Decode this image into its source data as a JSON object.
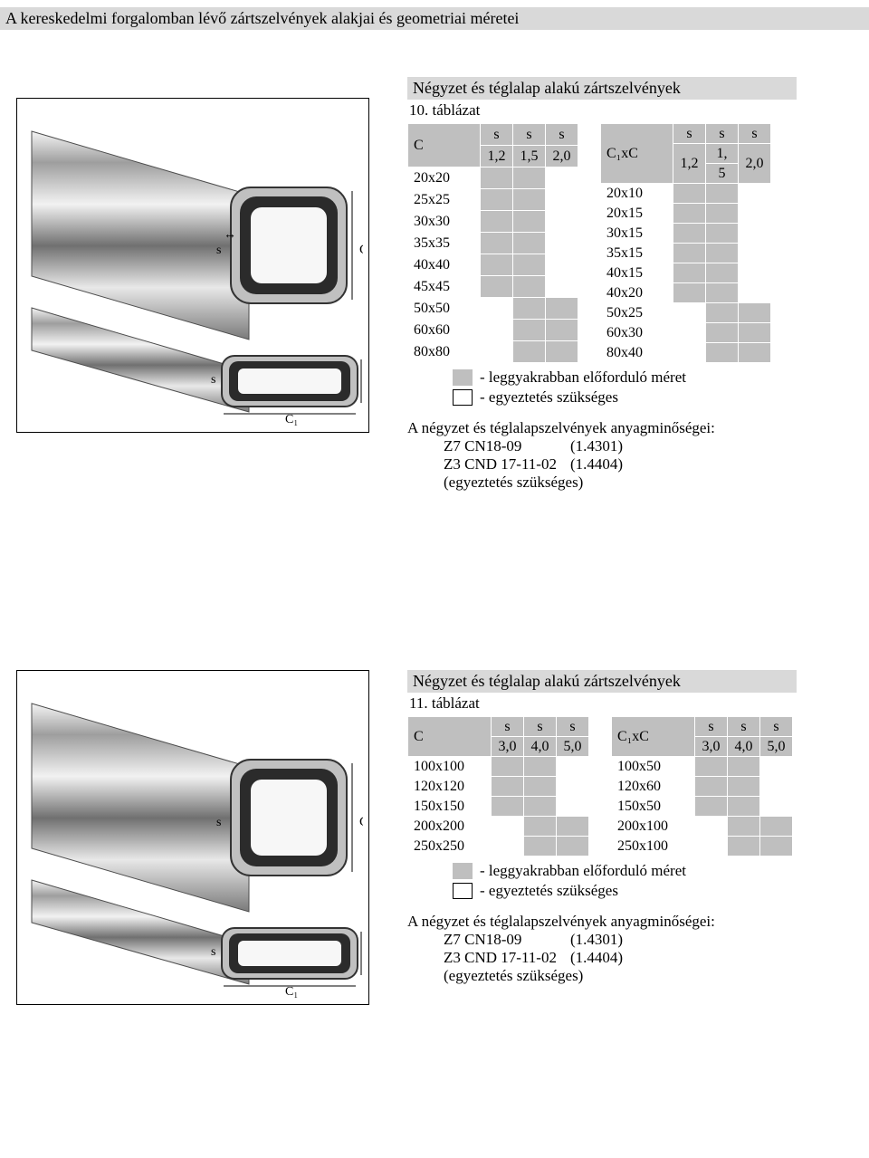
{
  "page_title": "A kereskedelmi forgalomban lévő zártszelvények alakjai és geometriai méretei",
  "colors": {
    "header_bg": "#d9d9d9",
    "grey": "#bfbfbf",
    "white": "#ffffff",
    "black": "#000000"
  },
  "section1": {
    "title": "Négyzet és téglalap alakú zártszelvények",
    "caption": "10. táblázat",
    "tableA": {
      "head_c": "C",
      "s1_top": "s",
      "s1_bot": "1,2",
      "s2_top": "s",
      "s2_bot": "1,5",
      "s3_top": "s",
      "s3_bot": "2,0",
      "rows": [
        "20x20",
        "25x25",
        "30x30",
        "35x35",
        "40x40",
        "45x45",
        "50x50",
        "60x60",
        "80x80"
      ],
      "marks": [
        [
          "g",
          "g",
          "w"
        ],
        [
          "g",
          "g",
          "w"
        ],
        [
          "g",
          "g",
          "w"
        ],
        [
          "g",
          "g",
          "w"
        ],
        [
          "g",
          "g",
          "w"
        ],
        [
          "g",
          "g",
          "w"
        ],
        [
          "w",
          "g",
          "g"
        ],
        [
          "w",
          "g",
          "g"
        ],
        [
          "w",
          "g",
          "g"
        ]
      ]
    },
    "tableB": {
      "head_c": "C₁xC",
      "s1_top": "s",
      "s1_bot": "1,2",
      "s2_top": "s",
      "s2_mid": "1,",
      "s2_bot": "5",
      "s3_top": "s",
      "s3_bot": "2,0",
      "rows": [
        "20x10",
        "20x15",
        "30x15",
        "35x15",
        "40x15",
        "40x20",
        "50x25",
        "60x30",
        "80x40"
      ],
      "marks": [
        [
          "g",
          "g",
          "w"
        ],
        [
          "g",
          "g",
          "w"
        ],
        [
          "g",
          "g",
          "w"
        ],
        [
          "g",
          "g",
          "w"
        ],
        [
          "g",
          "g",
          "w"
        ],
        [
          "g",
          "g",
          "w"
        ],
        [
          "w",
          "g",
          "g"
        ],
        [
          "w",
          "g",
          "g"
        ],
        [
          "w",
          "g",
          "g"
        ]
      ]
    },
    "legend_grey": "- leggyakrabban előforduló méret",
    "legend_white": "- egyeztetés szükséges",
    "materials_intro": "A négyzet és téglalapszelvények anyagminőségei:",
    "mat1_k": "Z7 CN18-09",
    "mat1_v": "(1.4301)",
    "mat2_k": "Z3 CND 17-11-02",
    "mat2_v": "(1.4404)",
    "mat_note": "(egyeztetés szükséges)"
  },
  "section2": {
    "title": "Négyzet és téglalap alakú zártszelvények",
    "caption": "11. táblázat",
    "tableA": {
      "head_c": "C",
      "s1_top": "s",
      "s1_bot": "3,0",
      "s2_top": "s",
      "s2_bot": "4,0",
      "s3_top": "s",
      "s3_bot": "5,0",
      "rows": [
        "100x100",
        "120x120",
        "150x150",
        "200x200",
        "250x250"
      ],
      "marks": [
        [
          "g",
          "g",
          "w"
        ],
        [
          "g",
          "g",
          "w"
        ],
        [
          "g",
          "g",
          "w"
        ],
        [
          "w",
          "g",
          "g"
        ],
        [
          "w",
          "g",
          "g"
        ]
      ]
    },
    "tableB": {
      "head_c": "C₁xC",
      "s1_top": "s",
      "s1_bot": "3,0",
      "s2_top": "s",
      "s2_bot": "4,0",
      "s3_top": "s",
      "s3_bot": "5,0",
      "rows": [
        "100x50",
        "120x60",
        "150x50",
        "200x100",
        "250x100"
      ],
      "marks": [
        [
          "g",
          "g",
          "w"
        ],
        [
          "g",
          "g",
          "w"
        ],
        [
          "g",
          "g",
          "w"
        ],
        [
          "w",
          "g",
          "g"
        ],
        [
          "w",
          "g",
          "g"
        ]
      ]
    },
    "legend_grey": "- leggyakrabban előforduló méret",
    "legend_white": "- egyeztetés szükséges",
    "materials_intro": "A négyzet és téglalapszelvények anyagminőségei:",
    "mat1_k": "Z7 CN18-09",
    "mat1_v": "(1.4301)",
    "mat2_k": "Z3 CND 17-11-02",
    "mat2_v": "(1.4404)",
    "mat_note": "(egyeztetés szükséges)"
  },
  "img_labels": {
    "s": "s",
    "C": "C",
    "C1": "C₁"
  }
}
